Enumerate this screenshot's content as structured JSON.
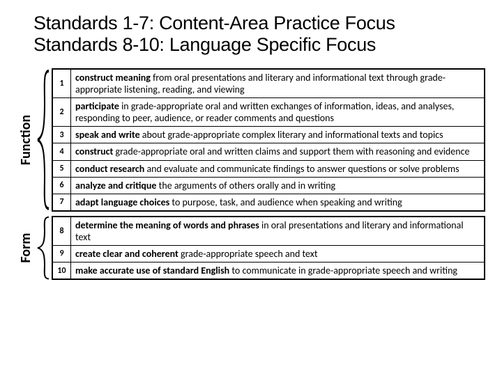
{
  "title_line1": "Standards 1-7:  Content-Area Practice Focus",
  "title_line2": "Standards 8-10:  Language Specific Focus",
  "groups": [
    {
      "label": "Function",
      "rows": [
        {
          "n": "1",
          "text": "construct meaning from oral presentations and literary and informational text through grade-appropriate listening, reading, and viewing"
        },
        {
          "n": "2",
          "text": "participate in grade-appropriate oral and written exchanges of information, ideas, and analyses, responding to peer, audience, or reader comments and questions"
        },
        {
          "n": "3",
          "text": "speak and write about grade-appropriate complex literary and informational texts and topics"
        },
        {
          "n": "4",
          "text": "construct grade-appropriate oral and written claims and support them with reasoning and evidence"
        },
        {
          "n": "5",
          "text": "conduct research and evaluate and communicate findings to answer questions or solve problems"
        },
        {
          "n": "6",
          "text": "analyze and critique the arguments of others orally and in writing"
        },
        {
          "n": "7",
          "text": "adapt language choices to purpose, task, and audience when speaking and writing"
        }
      ]
    },
    {
      "label": "Form",
      "rows": [
        {
          "n": "8",
          "text": "determine the meaning of words and phrases in oral presentations and literary and informational text"
        },
        {
          "n": "9",
          "text": "create clear and coherent grade-appropriate speech and text"
        },
        {
          "n": "10",
          "text": "make accurate use of standard English to communicate in grade-appropriate speech and writing"
        }
      ]
    }
  ],
  "bold_phrases": [
    "construct meaning",
    "participate",
    "speak and write",
    "construct",
    "conduct research",
    "analyze and critique",
    "adapt language choices",
    "determine the meaning of words and phrases",
    "create clear and coherent",
    "make accurate use of standard English"
  ],
  "colors": {
    "text": "#000000",
    "border": "#000000",
    "background": "#ffffff"
  }
}
